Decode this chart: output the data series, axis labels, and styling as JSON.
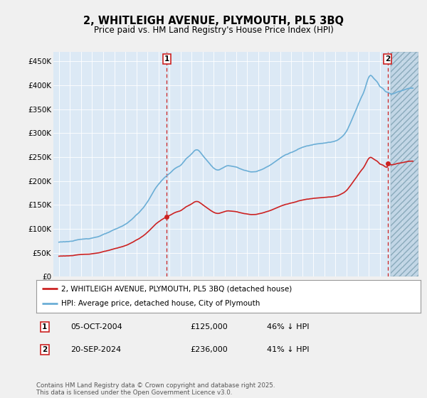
{
  "title": "2, WHITLEIGH AVENUE, PLYMOUTH, PL5 3BQ",
  "subtitle": "Price paid vs. HM Land Registry's House Price Index (HPI)",
  "hpi_color": "#6baed6",
  "price_color": "#cc2222",
  "dashed_line_color": "#cc2222",
  "background_color": "#f0f0f0",
  "plot_bg_color": "#dce9f5",
  "grid_color": "#ffffff",
  "ylim": [
    0,
    470000
  ],
  "yticks": [
    0,
    50000,
    100000,
    150000,
    200000,
    250000,
    300000,
    350000,
    400000,
    450000
  ],
  "ytick_labels": [
    "£0",
    "£50K",
    "£100K",
    "£150K",
    "£200K",
    "£250K",
    "£300K",
    "£350K",
    "£400K",
    "£450K"
  ],
  "sale1_date_num": 2004.76,
  "sale1_price": 125000,
  "sale1_label": "1",
  "sale2_date_num": 2024.72,
  "sale2_price": 236000,
  "sale2_label": "2",
  "legend_line1": "2, WHITLEIGH AVENUE, PLYMOUTH, PL5 3BQ (detached house)",
  "legend_line2": "HPI: Average price, detached house, City of Plymouth",
  "footer": "Contains HM Land Registry data © Crown copyright and database right 2025.\nThis data is licensed under the Open Government Licence v3.0.",
  "xmin": 1994.5,
  "xmax": 2027.5,
  "hatch_start": 2025.0
}
